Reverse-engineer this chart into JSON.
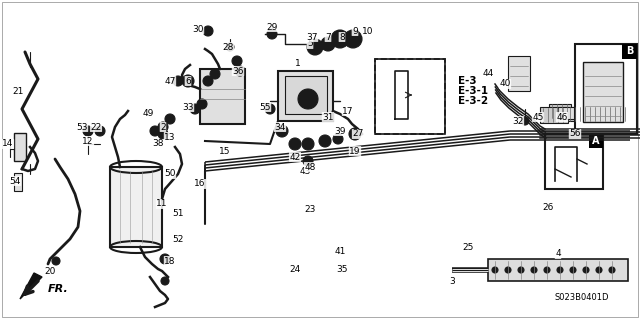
{
  "bg_color": "#ffffff",
  "line_color": "#1a1a1a",
  "text_color": "#000000",
  "gray_fill": "#c8c8c8",
  "light_gray": "#e0e0e0",
  "font_size": 6.5,
  "diagram_code": "S023B0401D",
  "fr_label": "FR.",
  "label_E3_text": "E-3\nE-3-1\nE-3-2",
  "box_A_label": "A",
  "box_B_label": "B"
}
